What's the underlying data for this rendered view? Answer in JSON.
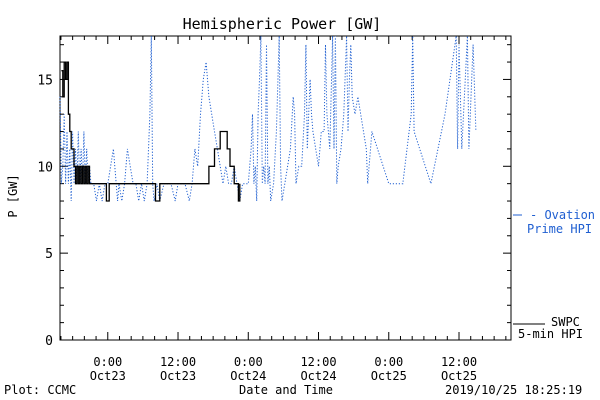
{
  "chart_data": {
    "type": "line",
    "title": "Hemispheric Power [GW]",
    "xlabel": "Date and Time",
    "ylabel": "P [GW]",
    "ylim": [
      0,
      17.5
    ],
    "xlim": [
      -0.34,
      2.87
    ],
    "x_unit": "days (0 = Oct23 00:00)",
    "yticks": [
      0,
      5,
      10,
      15
    ],
    "xticks": [
      {
        "x": 0.0,
        "time": "0:00",
        "date": "Oct23"
      },
      {
        "x": 0.5,
        "time": "12:00",
        "date": "Oct23"
      },
      {
        "x": 1.0,
        "time": "0:00",
        "date": "Oct24"
      },
      {
        "x": 1.5,
        "time": "12:00",
        "date": "Oct24"
      },
      {
        "x": 2.0,
        "time": "0:00",
        "date": "Oct25"
      },
      {
        "x": 2.5,
        "time": "12:00",
        "date": "Oct25"
      }
    ],
    "grid": false,
    "series": [
      {
        "name": "SWPC 5-min HPI",
        "color": "#000000",
        "style": "solid",
        "points": [
          [
            -0.33,
            15.5
          ],
          [
            -0.32,
            14
          ],
          [
            -0.31,
            16
          ],
          [
            -0.3,
            15
          ],
          [
            -0.29,
            16
          ],
          [
            -0.28,
            13
          ],
          [
            -0.27,
            12
          ],
          [
            -0.26,
            11
          ],
          [
            -0.25,
            11
          ],
          [
            -0.24,
            10
          ],
          [
            -0.23,
            9
          ],
          [
            -0.22,
            10
          ],
          [
            -0.21,
            9
          ],
          [
            -0.2,
            10
          ],
          [
            -0.19,
            9
          ],
          [
            -0.18,
            10
          ],
          [
            -0.17,
            9
          ],
          [
            -0.16,
            10
          ],
          [
            -0.15,
            9
          ],
          [
            -0.14,
            10
          ],
          [
            -0.13,
            9
          ],
          [
            -0.12,
            9
          ],
          [
            -0.1,
            9
          ],
          [
            -0.05,
            9
          ],
          [
            -0.02,
            9
          ],
          [
            -0.01,
            8
          ],
          [
            0.0,
            8
          ],
          [
            0.01,
            9
          ],
          [
            0.05,
            9
          ],
          [
            0.1,
            9
          ],
          [
            0.3,
            9
          ],
          [
            0.33,
            9
          ],
          [
            0.34,
            8
          ],
          [
            0.36,
            8
          ],
          [
            0.37,
            9
          ],
          [
            0.45,
            9
          ],
          [
            0.6,
            9
          ],
          [
            0.7,
            9
          ],
          [
            0.72,
            10
          ],
          [
            0.74,
            10
          ],
          [
            0.76,
            11
          ],
          [
            0.78,
            11
          ],
          [
            0.8,
            12
          ],
          [
            0.84,
            12
          ],
          [
            0.85,
            11
          ],
          [
            0.87,
            10
          ],
          [
            0.89,
            10
          ],
          [
            0.9,
            9
          ],
          [
            0.92,
            9
          ],
          [
            0.93,
            8
          ],
          [
            0.94,
            9
          ]
        ]
      },
      {
        "name": "Ovation Prime HPI",
        "color": "#1f5fd1",
        "style": "dotted",
        "points": [
          [
            -0.34,
            14
          ],
          [
            -0.33,
            9
          ],
          [
            -0.32,
            10
          ],
          [
            -0.31,
            13
          ],
          [
            -0.3,
            9
          ],
          [
            -0.29,
            12
          ],
          [
            -0.28,
            9
          ],
          [
            -0.27,
            11
          ],
          [
            -0.26,
            8
          ],
          [
            -0.25,
            12
          ],
          [
            -0.24,
            9
          ],
          [
            -0.23,
            11
          ],
          [
            -0.22,
            9
          ],
          [
            -0.21,
            12
          ],
          [
            -0.2,
            9
          ],
          [
            -0.19,
            11
          ],
          [
            -0.18,
            9
          ],
          [
            -0.17,
            12
          ],
          [
            -0.16,
            9
          ],
          [
            -0.15,
            11
          ],
          [
            -0.14,
            9
          ],
          [
            -0.13,
            10
          ],
          [
            -0.12,
            9
          ],
          [
            -0.1,
            9
          ],
          [
            -0.08,
            8
          ],
          [
            -0.06,
            9
          ],
          [
            -0.04,
            8
          ],
          [
            -0.02,
            9
          ],
          [
            0.0,
            9
          ],
          [
            0.02,
            10
          ],
          [
            0.04,
            11
          ],
          [
            0.06,
            9
          ],
          [
            0.07,
            8
          ],
          [
            0.08,
            9
          ],
          [
            0.1,
            8
          ],
          [
            0.12,
            9
          ],
          [
            0.14,
            11
          ],
          [
            0.16,
            10
          ],
          [
            0.18,
            9
          ],
          [
            0.2,
            9
          ],
          [
            0.22,
            8
          ],
          [
            0.24,
            9
          ],
          [
            0.26,
            8
          ],
          [
            0.28,
            9
          ],
          [
            0.3,
            13
          ],
          [
            0.31,
            17.5
          ],
          [
            0.32,
            9
          ],
          [
            0.33,
            8
          ],
          [
            0.35,
            9
          ],
          [
            0.37,
            8
          ],
          [
            0.4,
            9
          ],
          [
            0.45,
            9
          ],
          [
            0.48,
            8
          ],
          [
            0.5,
            9
          ],
          [
            0.55,
            9
          ],
          [
            0.58,
            8
          ],
          [
            0.6,
            9
          ],
          [
            0.62,
            11
          ],
          [
            0.64,
            10
          ],
          [
            0.66,
            13
          ],
          [
            0.68,
            15
          ],
          [
            0.7,
            16
          ],
          [
            0.72,
            14
          ],
          [
            0.74,
            13
          ],
          [
            0.76,
            12
          ],
          [
            0.78,
            11
          ],
          [
            0.8,
            10
          ],
          [
            0.82,
            9
          ],
          [
            0.84,
            10
          ],
          [
            0.86,
            9
          ],
          [
            0.88,
            9
          ],
          [
            0.9,
            10
          ],
          [
            0.92,
            9
          ],
          [
            0.94,
            8
          ],
          [
            0.96,
            9
          ],
          [
            0.98,
            9
          ],
          [
            1.0,
            9
          ],
          [
            1.02,
            11
          ],
          [
            1.03,
            13
          ],
          [
            1.04,
            9
          ],
          [
            1.05,
            10
          ],
          [
            1.06,
            8
          ],
          [
            1.07,
            13
          ],
          [
            1.08,
            15
          ],
          [
            1.09,
            17.5
          ],
          [
            1.1,
            9
          ],
          [
            1.11,
            10
          ],
          [
            1.12,
            9
          ],
          [
            1.13,
            17
          ],
          [
            1.14,
            9
          ],
          [
            1.15,
            10
          ],
          [
            1.16,
            8
          ],
          [
            1.18,
            9
          ],
          [
            1.2,
            12
          ],
          [
            1.22,
            17.5
          ],
          [
            1.23,
            10
          ],
          [
            1.24,
            8
          ],
          [
            1.26,
            9
          ],
          [
            1.28,
            10
          ],
          [
            1.3,
            11
          ],
          [
            1.32,
            14
          ],
          [
            1.33,
            13
          ],
          [
            1.34,
            9
          ],
          [
            1.36,
            10
          ],
          [
            1.38,
            10
          ],
          [
            1.4,
            13
          ],
          [
            1.41,
            17
          ],
          [
            1.42,
            11
          ],
          [
            1.44,
            15
          ],
          [
            1.45,
            13
          ],
          [
            1.46,
            12
          ],
          [
            1.48,
            11
          ],
          [
            1.5,
            10
          ],
          [
            1.52,
            12
          ],
          [
            1.54,
            12
          ],
          [
            1.55,
            17
          ],
          [
            1.56,
            13
          ],
          [
            1.58,
            11
          ],
          [
            1.6,
            17.5
          ],
          [
            1.61,
            11
          ],
          [
            1.62,
            17.5
          ],
          [
            1.63,
            9
          ],
          [
            1.64,
            10
          ],
          [
            1.66,
            11
          ],
          [
            1.68,
            13
          ],
          [
            1.7,
            17.5
          ],
          [
            1.71,
            12
          ],
          [
            1.72,
            15
          ],
          [
            1.73,
            17
          ],
          [
            1.74,
            14
          ],
          [
            1.76,
            13
          ],
          [
            1.78,
            14
          ],
          [
            1.8,
            13
          ],
          [
            1.82,
            12
          ],
          [
            1.84,
            11
          ],
          [
            1.85,
            9
          ],
          [
            1.86,
            10
          ],
          [
            1.88,
            12
          ],
          [
            2.0,
            9
          ],
          [
            2.1,
            9
          ],
          [
            2.16,
            13
          ],
          [
            2.17,
            17.5
          ],
          [
            2.18,
            12
          ],
          [
            2.3,
            9
          ],
          [
            2.4,
            13
          ],
          [
            2.48,
            17.5
          ],
          [
            2.49,
            11
          ],
          [
            2.5,
            17
          ],
          [
            2.52,
            11
          ],
          [
            2.56,
            17.5
          ],
          [
            2.57,
            11
          ],
          [
            2.6,
            17
          ],
          [
            2.62,
            12
          ]
        ]
      }
    ],
    "legend": [
      {
        "line": "- Ovation",
        "line2": "Prime HPI",
        "color": "#1f5fd1",
        "placement": "right"
      },
      {
        "line": "SWPC",
        "line2": "5-min HPI",
        "color": "#000000",
        "placement": "bottom-right"
      }
    ]
  },
  "footer": {
    "plot_credit": "Plot: CCMC",
    "timestamp": "2019/10/25 18:25:19"
  }
}
